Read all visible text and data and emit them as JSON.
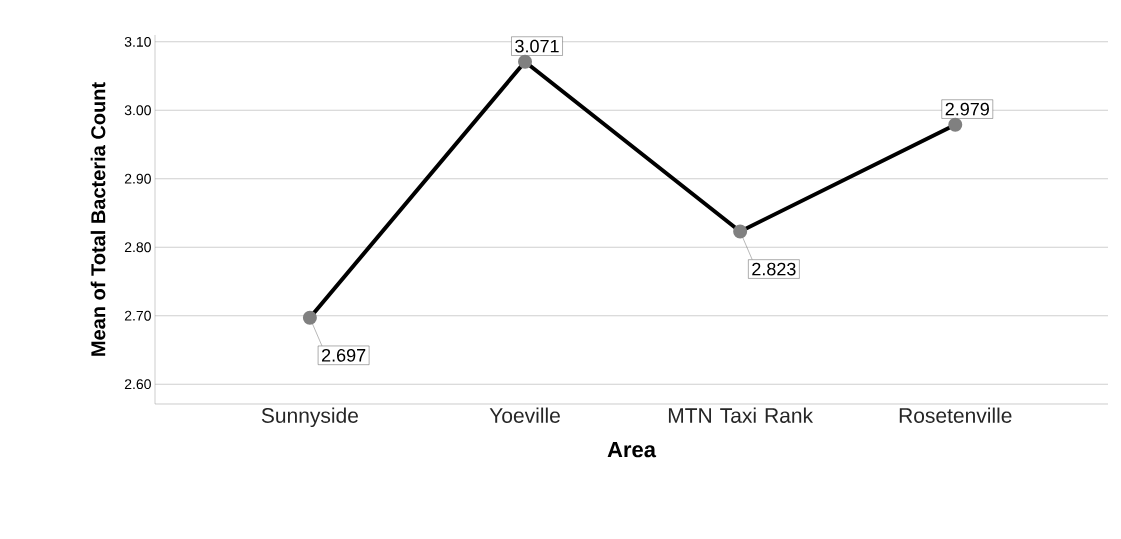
{
  "chart_data": {
    "type": "line",
    "xlabel": "Area",
    "ylabel": "Mean of Total Bacteria Count",
    "categories": [
      "Sunnyside",
      "Yoeville",
      "MTN Taxi Rank",
      "Rosetenville"
    ],
    "values": [
      2.697,
      3.071,
      2.823,
      2.979
    ],
    "color": "#000000",
    "marker": "circle",
    "line_style": "solid",
    "ylim": [
      2.571,
      3.11
    ],
    "yticks": [
      {
        "value": 2.6,
        "label": "2.60"
      },
      {
        "value": 2.7,
        "label": "2.70"
      },
      {
        "value": 2.8,
        "label": "2.80"
      },
      {
        "value": 2.9,
        "label": "2.90"
      },
      {
        "value": 3.0,
        "label": "3.00"
      },
      {
        "value": 3.1,
        "label": "3.10"
      }
    ],
    "grid": "y",
    "data_labels": true
  }
}
